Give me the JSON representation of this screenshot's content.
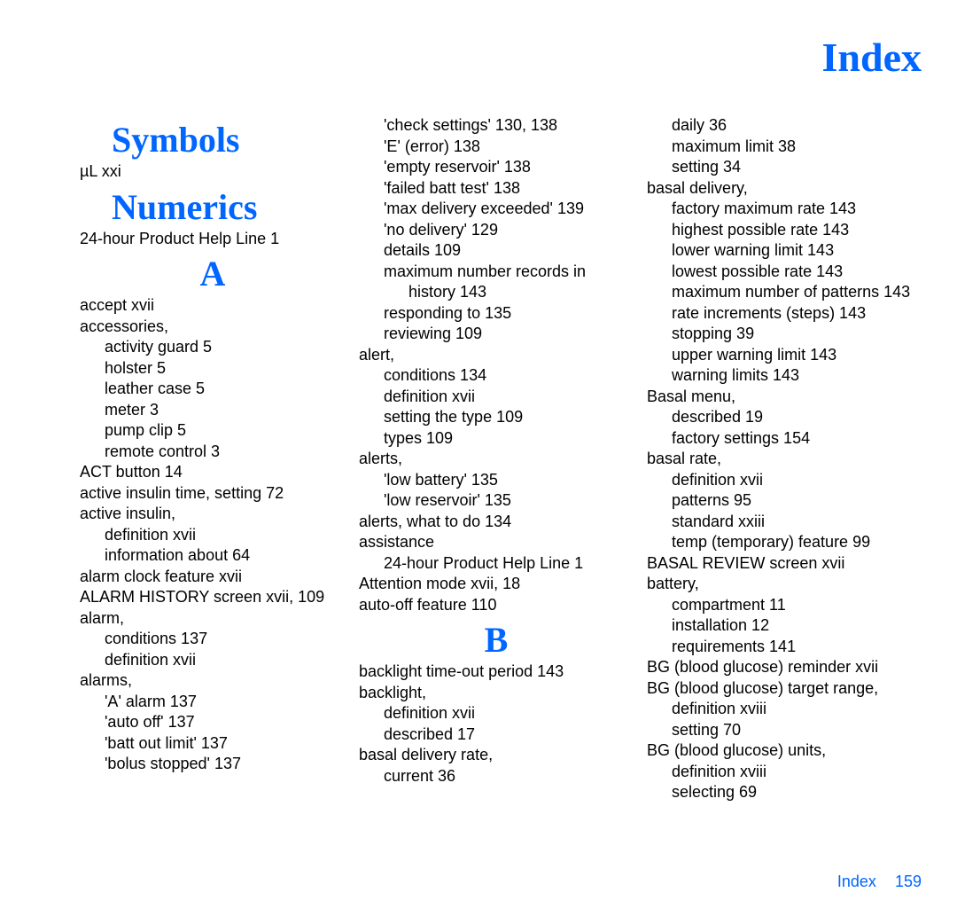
{
  "page_title": "Index",
  "footer": {
    "label": "Index",
    "page_number": "159"
  },
  "style": {
    "heading_color": "#0066ff",
    "text_color": "#000000",
    "background_color": "#ffffff",
    "heading_font": "Comic Sans MS",
    "body_font": "Trebuchet MS",
    "heading_fontsize": 40,
    "body_fontsize": 18
  },
  "s": {
    "symbols": "Symbols",
    "numerics": "Numerics",
    "A": "A",
    "B": "B"
  },
  "c1": {
    "l0": "µL xxi",
    "l1": "24-hour Product Help Line 1",
    "l2": "accept xvii",
    "l3": "accessories,",
    "l4": "activity guard 5",
    "l5": "holster 5",
    "l6": "leather case 5",
    "l7": "meter 3",
    "l8": "pump clip 5",
    "l9": "remote control 3",
    "l10": "ACT button 14",
    "l11": "active insulin time, setting 72",
    "l12": "active insulin,",
    "l13": "definition xvii",
    "l14": "information about 64",
    "l15": "alarm clock feature xvii",
    "l16": "ALARM HISTORY screen xvii, 109",
    "l17": "alarm,",
    "l18": "conditions 137",
    "l19": "definition xvii",
    "l20": "alarms,",
    "l21": "'A' alarm 137",
    "l22": "'auto off' 137",
    "l23": "'batt out limit' 137",
    "l24": "'bolus stopped' 137"
  },
  "c2": {
    "l0": "'check settings' 130, 138",
    "l1": "'E' (error) 138",
    "l2": "'empty reservoir' 138",
    "l3": "'failed batt test' 138",
    "l4": "'max delivery exceeded' 139",
    "l5": "'no delivery' 129",
    "l6": "details 109",
    "l7": "maximum number records in",
    "l8": "history 143",
    "l9": "responding to 135",
    "l10": "reviewing 109",
    "l11": "alert,",
    "l12": "conditions 134",
    "l13": "definition xvii",
    "l14": "setting the type 109",
    "l15": "types 109",
    "l16": "alerts,",
    "l17": "'low battery' 135",
    "l18": "'low reservoir' 135",
    "l19": "alerts, what to do 134",
    "l20": "assistance",
    "l21": "24-hour Product Help Line 1",
    "l22": "Attention mode xvii, 18",
    "l23": "auto-off feature 110",
    "l24": "backlight time-out period 143",
    "l25": "backlight,",
    "l26": "definition xvii",
    "l27": "described 17",
    "l28": "basal delivery rate,",
    "l29": "current 36"
  },
  "c3": {
    "l0": "daily 36",
    "l1": "maximum limit 38",
    "l2": "setting 34",
    "l3": "basal delivery,",
    "l4": "factory maximum rate 143",
    "l5": "highest possible rate 143",
    "l6": "lower warning limit 143",
    "l7": "lowest possible rate 143",
    "l8": "maximum number of patterns 143",
    "l9": "rate increments (steps) 143",
    "l10": "stopping 39",
    "l11": "upper warning limit 143",
    "l12": "warning limits 143",
    "l13": "Basal menu,",
    "l14": "described 19",
    "l15": "factory settings 154",
    "l16": "basal rate,",
    "l17": "definition xvii",
    "l18": "patterns 95",
    "l19": "standard xxiii",
    "l20": "temp (temporary) feature 99",
    "l21": "BASAL REVIEW screen xvii",
    "l22": "battery,",
    "l23": "compartment 11",
    "l24": "installation 12",
    "l25": "requirements 141",
    "l26": "BG (blood glucose) reminder xvii",
    "l27": "BG (blood glucose) target range,",
    "l28": "definition xviii",
    "l29": "setting 70",
    "l30": "BG (blood glucose) units,",
    "l31": "definition xviii",
    "l32": "selecting 69"
  }
}
